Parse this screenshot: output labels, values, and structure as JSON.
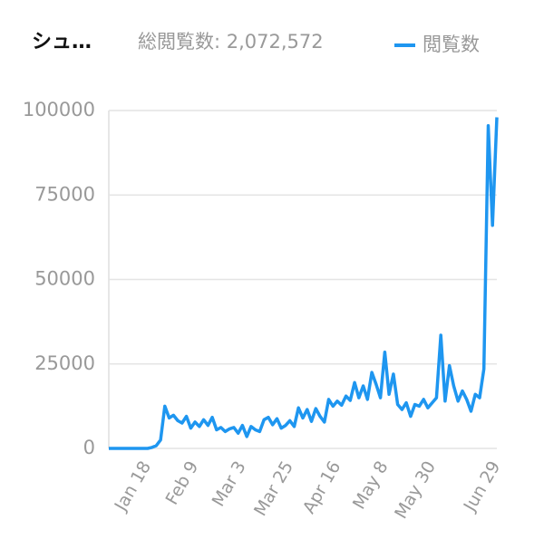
{
  "chart_data": {
    "type": "line",
    "title": "シュ…",
    "subtitle": "総閲覧数: 2,072,572",
    "categories": [
      null,
      null,
      null,
      null,
      null,
      null,
      null,
      null,
      "Jan 18",
      null,
      null,
      null,
      null,
      null,
      null,
      null,
      null,
      null,
      null,
      "Feb 9",
      null,
      null,
      null,
      null,
      null,
      null,
      null,
      null,
      null,
      null,
      "Mar 3",
      null,
      null,
      null,
      null,
      null,
      null,
      null,
      null,
      null,
      null,
      "Mar 25",
      null,
      null,
      null,
      null,
      null,
      null,
      null,
      null,
      null,
      null,
      "Apr 16",
      null,
      null,
      null,
      null,
      null,
      null,
      null,
      null,
      null,
      null,
      "May 8",
      null,
      null,
      null,
      null,
      null,
      null,
      null,
      null,
      null,
      null,
      "May 30",
      null,
      null,
      null,
      null,
      null,
      null,
      null,
      null,
      null,
      null,
      null,
      null,
      null,
      null,
      "Jun 29",
      null
    ],
    "series": [
      {
        "name": "閲覧数",
        "color": "#1e96f0",
        "values": [
          0,
          0,
          0,
          0,
          0,
          0,
          0,
          0,
          0,
          0,
          300,
          800,
          2500,
          12500,
          9000,
          9800,
          8200,
          7500,
          9500,
          6000,
          7800,
          6500,
          8500,
          6800,
          9200,
          5500,
          6200,
          5000,
          5800,
          6200,
          4500,
          6800,
          3500,
          6500,
          5500,
          5000,
          8500,
          9200,
          7000,
          8800,
          6000,
          6800,
          8200,
          6500,
          12000,
          9000,
          11500,
          8000,
          11800,
          9500,
          7800,
          14500,
          12500,
          14000,
          12800,
          15500,
          14200,
          19500,
          15000,
          18500,
          14500,
          22500,
          19000,
          15000,
          28500,
          16000,
          22000,
          13000,
          11500,
          13500,
          9500,
          13000,
          12500,
          14500,
          12000,
          13500,
          15000,
          33500,
          14000,
          24500,
          18500,
          14000,
          17000,
          14500,
          11000,
          16000,
          15000,
          23500,
          95500,
          66000,
          98000
        ]
      }
    ],
    "ylim": [
      0,
      100000
    ],
    "yticks": [
      0,
      25000,
      50000,
      75000,
      100000
    ],
    "grid": true,
    "legend": "top-right"
  }
}
